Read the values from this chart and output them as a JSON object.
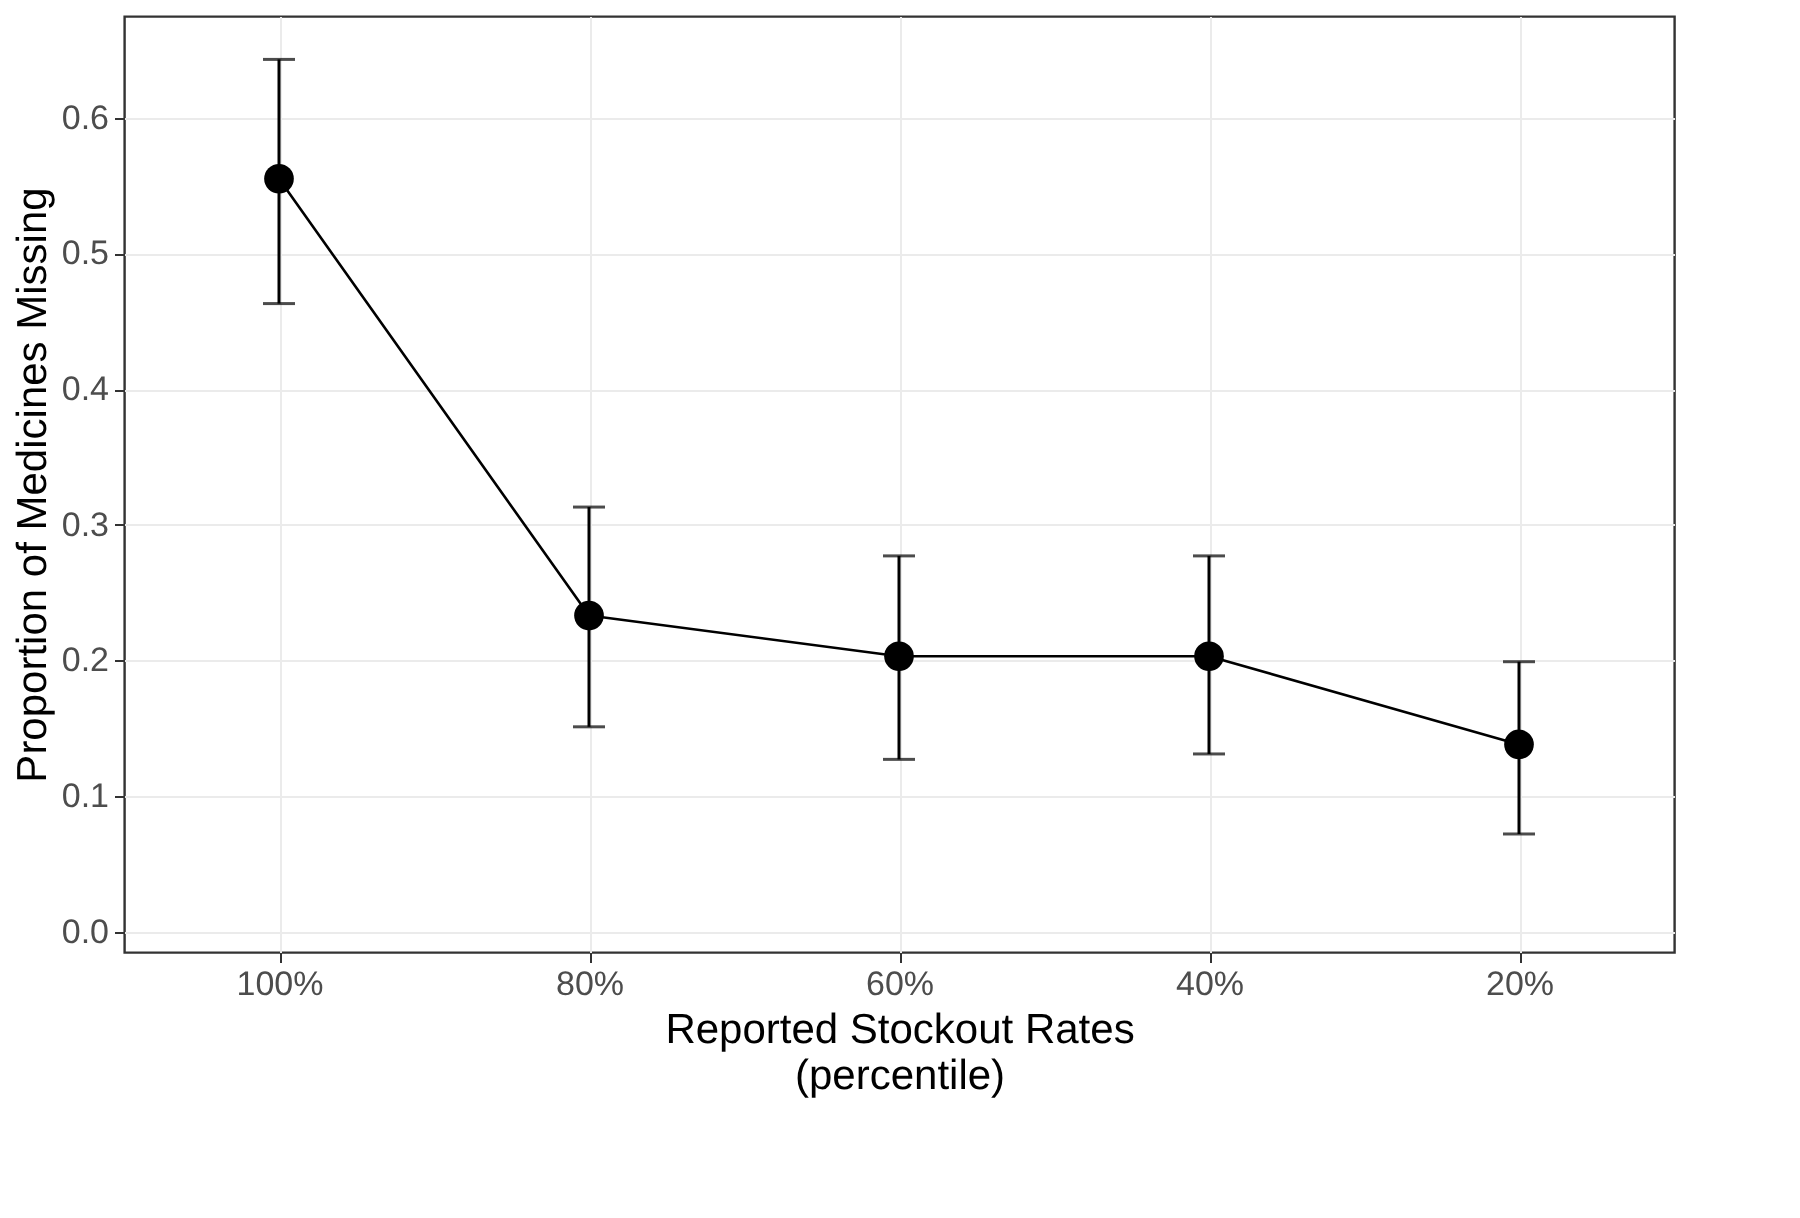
{
  "chart_data": {
    "type": "line",
    "xlabel": "Reported Stockout Rates\n(percentile)",
    "ylabel": "Proportion of Medicines Missing",
    "categories": [
      "100%",
      "80%",
      "60%",
      "40%",
      "20%"
    ],
    "series": [
      {
        "color": "#000000",
        "values": [
          0.555,
          0.233,
          0.203,
          0.203,
          0.138
        ],
        "errors": [
          [
            0.463,
            0.643
          ],
          [
            0.151,
            0.313
          ],
          [
            0.127,
            0.277
          ],
          [
            0.131,
            0.277
          ],
          [
            0.072,
            0.199
          ]
        ]
      }
    ],
    "ylim": [
      -0.015,
      0.675
    ],
    "yticks": [
      {
        "value": 0,
        "label": "0.0"
      },
      0.1,
      0.2,
      0.3,
      0.4,
      0.5,
      0.6
    ],
    "grid": true,
    "marker": "circle",
    "line_style": "solid"
  }
}
